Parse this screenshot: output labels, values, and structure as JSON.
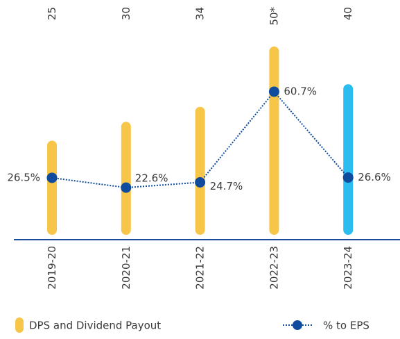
{
  "chart_data": {
    "type": "bar-line",
    "categories": [
      "2019-20",
      "2020-21",
      "2021-22",
      "2022-23",
      "2023-24"
    ],
    "series": [
      {
        "name": "DPS and Dividend Payout",
        "type": "bar",
        "colors": [
          "#f7c548",
          "#f7c548",
          "#f7c548",
          "#f7c548",
          "#2bbcf0"
        ],
        "color": "#f7c548",
        "values": [
          25,
          30,
          34,
          50,
          40
        ],
        "value_labels": [
          "25",
          "30",
          "34",
          "50*",
          "40"
        ]
      },
      {
        "name": "% to EPS",
        "type": "line",
        "axis": "y2",
        "color": "#0f4c9e",
        "values": [
          26.5,
          22.6,
          24.7,
          60.7,
          26.6
        ],
        "value_labels": [
          "26.5%",
          "22.6%",
          "24.7%",
          "60.7%",
          "26.6%"
        ]
      }
    ],
    "ylim": [
      0,
      50
    ],
    "y2lim": [
      0,
      80
    ]
  }
}
